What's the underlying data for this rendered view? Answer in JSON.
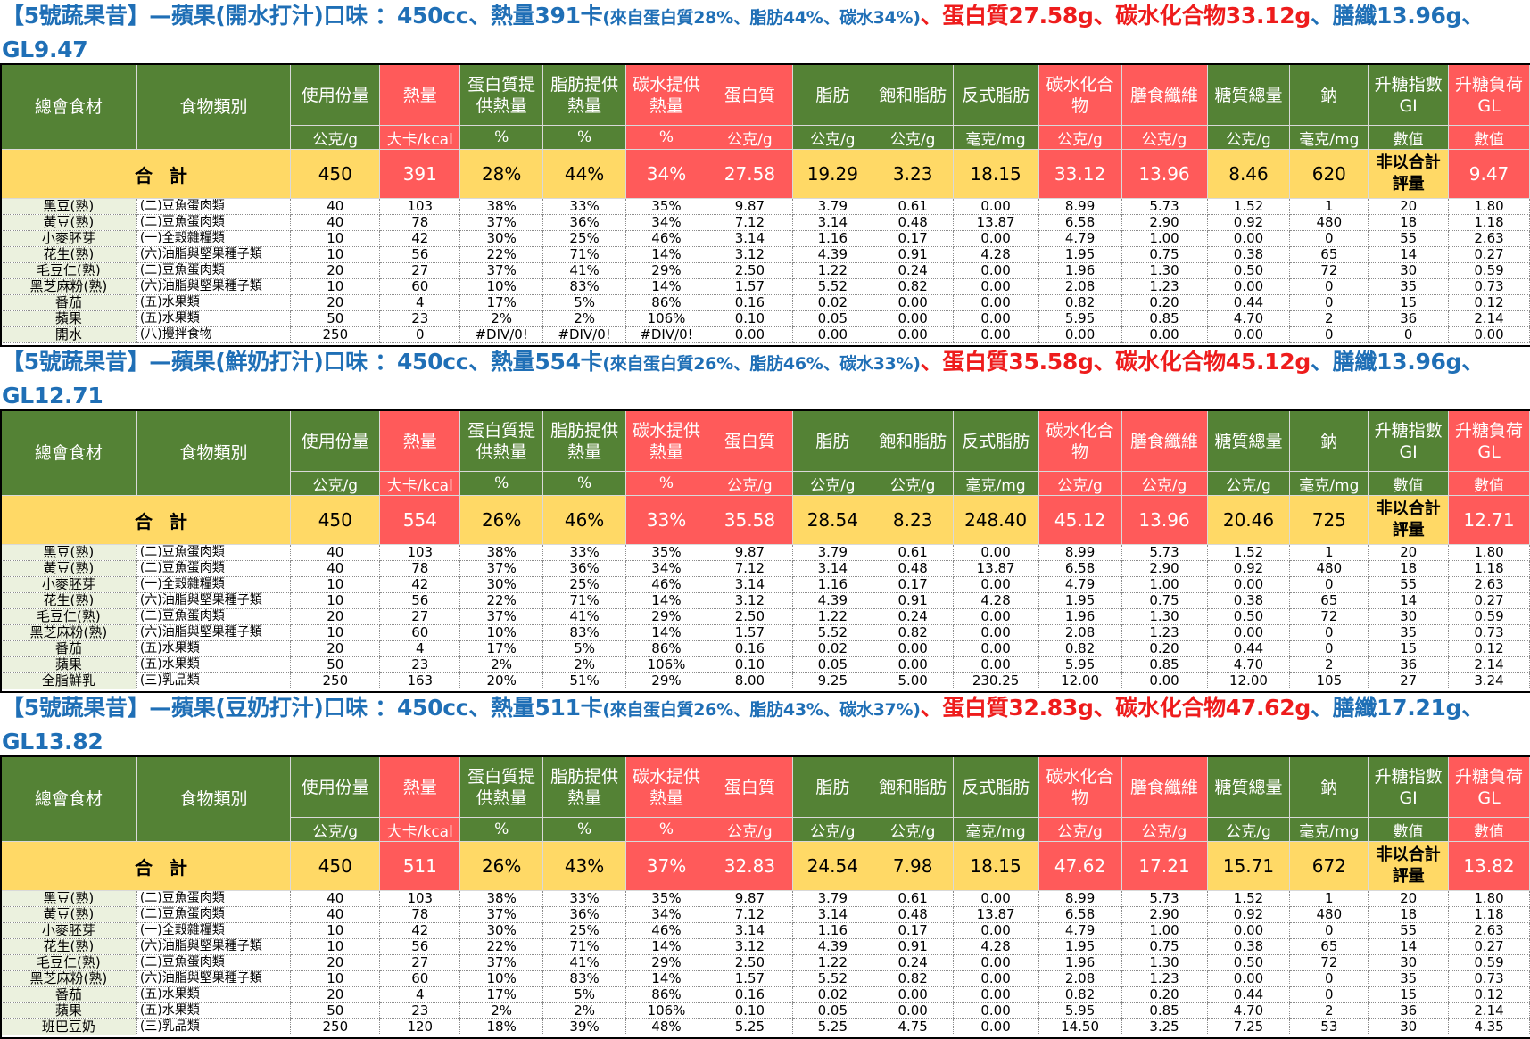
{
  "header_labels": {
    "col_ingredient": "總會食材",
    "col_category": "食物類別",
    "col_portion": "使用份量",
    "col_calories": "熱量",
    "col_protein_pct": "蛋白質提供熱量",
    "col_fat_pct": "脂肪提供熱量",
    "col_carb_pct": "碳水提供熱量",
    "col_protein": "蛋白質",
    "col_fat": "脂肪",
    "col_satfat": "飽和脂肪",
    "col_transfat": "反式脂肪",
    "col_carbs": "碳水化合物",
    "col_fiber": "膳食纖維",
    "col_sugar": "糖質總量",
    "col_sodium": "鈉",
    "col_gi": "升糖指數GI",
    "col_gl": "升糖負荷GL"
  },
  "unit_labels": {
    "portion": "公克/g",
    "calories": "大卡/kcal",
    "protein_pct": "%",
    "fat_pct": "%",
    "carb_pct": "%",
    "protein": "公克/g",
    "fat": "公克/g",
    "satfat": "公克/g",
    "transfat": "毫克/mg",
    "carbs": "公克/g",
    "fiber": "公克/g",
    "sugar": "公克/g",
    "sodium": "毫克/mg",
    "gi": "數值",
    "gl": "數值"
  },
  "colors": {
    "title_blue": "#1f6fb6",
    "title_red": "#ee1c1c",
    "header_green": "#548235",
    "header_red": "#ff5a5a",
    "total_yellow": "#ffd966",
    "name_tint": "#ebf1de"
  },
  "sections": [
    {
      "title": {
        "main": "【5號蔬果昔】—蘋果(開水打汁)口味 ：450cc、熱量391卡",
        "note": "(來自蛋白質28%、脂肪44%、碳水34%)",
        "sep1": "、",
        "protein": "蛋白質27.58g",
        "sep2": "、",
        "carbs": "碳水化合物33.12g",
        "tail": "、膳纖13.96g、GL9.47"
      },
      "total": {
        "label": "合 計",
        "values": [
          "450",
          "391",
          "28%",
          "44%",
          "34%",
          "27.58",
          "19.29",
          "3.23",
          "18.15",
          "33.12",
          "13.96",
          "8.46",
          "620",
          "非以合計評量",
          "9.47"
        ]
      },
      "rows": [
        {
          "name": "黑豆(熟)",
          "category": "(二)豆魚蛋肉類",
          "values": [
            "40",
            "103",
            "38%",
            "33%",
            "35%",
            "9.87",
            "3.79",
            "0.61",
            "0.00",
            "8.99",
            "5.73",
            "1.52",
            "1",
            "20",
            "1.80"
          ]
        },
        {
          "name": "黃豆(熟)",
          "category": "(二)豆魚蛋肉類",
          "values": [
            "40",
            "78",
            "37%",
            "36%",
            "34%",
            "7.12",
            "3.14",
            "0.48",
            "13.87",
            "6.58",
            "2.90",
            "0.92",
            "480",
            "18",
            "1.18"
          ]
        },
        {
          "name": "小麥胚芽",
          "category": "(一)全穀雜糧類",
          "values": [
            "10",
            "42",
            "30%",
            "25%",
            "46%",
            "3.14",
            "1.16",
            "0.17",
            "0.00",
            "4.79",
            "1.00",
            "0.00",
            "0",
            "55",
            "2.63"
          ]
        },
        {
          "name": "花生(熟)",
          "category": "(六)油脂與堅果種子類",
          "values": [
            "10",
            "56",
            "22%",
            "71%",
            "14%",
            "3.12",
            "4.39",
            "0.91",
            "4.28",
            "1.95",
            "0.75",
            "0.38",
            "65",
            "14",
            "0.27"
          ]
        },
        {
          "name": "毛豆仁(熟)",
          "category": "(二)豆魚蛋肉類",
          "values": [
            "20",
            "27",
            "37%",
            "41%",
            "29%",
            "2.50",
            "1.22",
            "0.24",
            "0.00",
            "1.96",
            "1.30",
            "0.50",
            "72",
            "30",
            "0.59"
          ]
        },
        {
          "name": "黑芝麻粉(熟)",
          "category": "(六)油脂與堅果種子類",
          "values": [
            "10",
            "60",
            "10%",
            "83%",
            "14%",
            "1.57",
            "5.52",
            "0.82",
            "0.00",
            "2.08",
            "1.23",
            "0.00",
            "0",
            "35",
            "0.73"
          ]
        },
        {
          "name": "番茄",
          "category": "(五)水果類",
          "values": [
            "20",
            "4",
            "17%",
            "5%",
            "86%",
            "0.16",
            "0.02",
            "0.00",
            "0.00",
            "0.82",
            "0.20",
            "0.44",
            "0",
            "15",
            "0.12"
          ]
        },
        {
          "name": "蘋果",
          "category": "(五)水果類",
          "values": [
            "50",
            "23",
            "2%",
            "2%",
            "106%",
            "0.10",
            "0.05",
            "0.00",
            "0.00",
            "5.95",
            "0.85",
            "4.70",
            "2",
            "36",
            "2.14"
          ]
        },
        {
          "name": "開水",
          "category": "(八)攪拌食物",
          "values": [
            "250",
            "0",
            "#DIV/0!",
            "#DIV/0!",
            "#DIV/0!",
            "0.00",
            "0.00",
            "0.00",
            "0.00",
            "0.00",
            "0.00",
            "0.00",
            "0",
            "0",
            "0.00"
          ]
        }
      ]
    },
    {
      "title": {
        "main": "【5號蔬果昔】—蘋果(鮮奶打汁)口味 ：450cc、熱量554卡",
        "note": "(來自蛋白質26%、脂肪46%、碳水33%)",
        "sep1": "、",
        "protein": "蛋白質35.58g",
        "sep2": "、",
        "carbs": "碳水化合物45.12g",
        "tail": "、膳纖13.96g、GL12.71"
      },
      "total": {
        "label": "合 計",
        "values": [
          "450",
          "554",
          "26%",
          "46%",
          "33%",
          "35.58",
          "28.54",
          "8.23",
          "248.40",
          "45.12",
          "13.96",
          "20.46",
          "725",
          "非以合計評量",
          "12.71"
        ]
      },
      "rows": [
        {
          "name": "黑豆(熟)",
          "category": "(二)豆魚蛋肉類",
          "values": [
            "40",
            "103",
            "38%",
            "33%",
            "35%",
            "9.87",
            "3.79",
            "0.61",
            "0.00",
            "8.99",
            "5.73",
            "1.52",
            "1",
            "20",
            "1.80"
          ]
        },
        {
          "name": "黃豆(熟)",
          "category": "(二)豆魚蛋肉類",
          "values": [
            "40",
            "78",
            "37%",
            "36%",
            "34%",
            "7.12",
            "3.14",
            "0.48",
            "13.87",
            "6.58",
            "2.90",
            "0.92",
            "480",
            "18",
            "1.18"
          ]
        },
        {
          "name": "小麥胚芽",
          "category": "(一)全穀雜糧類",
          "values": [
            "10",
            "42",
            "30%",
            "25%",
            "46%",
            "3.14",
            "1.16",
            "0.17",
            "0.00",
            "4.79",
            "1.00",
            "0.00",
            "0",
            "55",
            "2.63"
          ]
        },
        {
          "name": "花生(熟)",
          "category": "(六)油脂與堅果種子類",
          "values": [
            "10",
            "56",
            "22%",
            "71%",
            "14%",
            "3.12",
            "4.39",
            "0.91",
            "4.28",
            "1.95",
            "0.75",
            "0.38",
            "65",
            "14",
            "0.27"
          ]
        },
        {
          "name": "毛豆仁(熟)",
          "category": "(二)豆魚蛋肉類",
          "values": [
            "20",
            "27",
            "37%",
            "41%",
            "29%",
            "2.50",
            "1.22",
            "0.24",
            "0.00",
            "1.96",
            "1.30",
            "0.50",
            "72",
            "30",
            "0.59"
          ]
        },
        {
          "name": "黑芝麻粉(熟)",
          "category": "(六)油脂與堅果種子類",
          "values": [
            "10",
            "60",
            "10%",
            "83%",
            "14%",
            "1.57",
            "5.52",
            "0.82",
            "0.00",
            "2.08",
            "1.23",
            "0.00",
            "0",
            "35",
            "0.73"
          ]
        },
        {
          "name": "番茄",
          "category": "(五)水果類",
          "values": [
            "20",
            "4",
            "17%",
            "5%",
            "86%",
            "0.16",
            "0.02",
            "0.00",
            "0.00",
            "0.82",
            "0.20",
            "0.44",
            "0",
            "15",
            "0.12"
          ]
        },
        {
          "name": "蘋果",
          "category": "(五)水果類",
          "values": [
            "50",
            "23",
            "2%",
            "2%",
            "106%",
            "0.10",
            "0.05",
            "0.00",
            "0.00",
            "5.95",
            "0.85",
            "4.70",
            "2",
            "36",
            "2.14"
          ]
        },
        {
          "name": "全脂鮮乳",
          "category": "(三)乳品類",
          "values": [
            "250",
            "163",
            "20%",
            "51%",
            "29%",
            "8.00",
            "9.25",
            "5.00",
            "230.25",
            "12.00",
            "0.00",
            "12.00",
            "105",
            "27",
            "3.24"
          ]
        }
      ]
    },
    {
      "title": {
        "main": "【5號蔬果昔】—蘋果(豆奶打汁)口味 ：450cc、熱量511卡",
        "note": "(來自蛋白質26%、脂肪43%、碳水37%)",
        "sep1": "、",
        "protein": "蛋白質32.83g",
        "sep2": "、",
        "carbs": "碳水化合物47.62g",
        "tail": "、膳纖17.21g、GL13.82"
      },
      "total": {
        "label": "合 計",
        "values": [
          "450",
          "511",
          "26%",
          "43%",
          "37%",
          "32.83",
          "24.54",
          "7.98",
          "18.15",
          "47.62",
          "17.21",
          "15.71",
          "672",
          "非以合計評量",
          "13.82"
        ]
      },
      "rows": [
        {
          "name": "黑豆(熟)",
          "category": "(二)豆魚蛋肉類",
          "values": [
            "40",
            "103",
            "38%",
            "33%",
            "35%",
            "9.87",
            "3.79",
            "0.61",
            "0.00",
            "8.99",
            "5.73",
            "1.52",
            "1",
            "20",
            "1.80"
          ]
        },
        {
          "name": "黃豆(熟)",
          "category": "(二)豆魚蛋肉類",
          "values": [
            "40",
            "78",
            "37%",
            "36%",
            "34%",
            "7.12",
            "3.14",
            "0.48",
            "13.87",
            "6.58",
            "2.90",
            "0.92",
            "480",
            "18",
            "1.18"
          ]
        },
        {
          "name": "小麥胚芽",
          "category": "(一)全穀雜糧類",
          "values": [
            "10",
            "42",
            "30%",
            "25%",
            "46%",
            "3.14",
            "1.16",
            "0.17",
            "0.00",
            "4.79",
            "1.00",
            "0.00",
            "0",
            "55",
            "2.63"
          ]
        },
        {
          "name": "花生(熟)",
          "category": "(六)油脂與堅果種子類",
          "values": [
            "10",
            "56",
            "22%",
            "71%",
            "14%",
            "3.12",
            "4.39",
            "0.91",
            "4.28",
            "1.95",
            "0.75",
            "0.38",
            "65",
            "14",
            "0.27"
          ]
        },
        {
          "name": "毛豆仁(熟)",
          "category": "(二)豆魚蛋肉類",
          "values": [
            "20",
            "27",
            "37%",
            "41%",
            "29%",
            "2.50",
            "1.22",
            "0.24",
            "0.00",
            "1.96",
            "1.30",
            "0.50",
            "72",
            "30",
            "0.59"
          ]
        },
        {
          "name": "黑芝麻粉(熟)",
          "category": "(六)油脂與堅果種子類",
          "values": [
            "10",
            "60",
            "10%",
            "83%",
            "14%",
            "1.57",
            "5.52",
            "0.82",
            "0.00",
            "2.08",
            "1.23",
            "0.00",
            "0",
            "35",
            "0.73"
          ]
        },
        {
          "name": "番茄",
          "category": "(五)水果類",
          "values": [
            "20",
            "4",
            "17%",
            "5%",
            "86%",
            "0.16",
            "0.02",
            "0.00",
            "0.00",
            "0.82",
            "0.20",
            "0.44",
            "0",
            "15",
            "0.12"
          ]
        },
        {
          "name": "蘋果",
          "category": "(五)水果類",
          "values": [
            "50",
            "23",
            "2%",
            "2%",
            "106%",
            "0.10",
            "0.05",
            "0.00",
            "0.00",
            "5.95",
            "0.85",
            "4.70",
            "2",
            "36",
            "2.14"
          ]
        },
        {
          "name": "班巴豆奶",
          "category": "(三)乳品類",
          "values": [
            "250",
            "120",
            "18%",
            "39%",
            "48%",
            "5.25",
            "5.25",
            "4.75",
            "0.00",
            "14.50",
            "3.25",
            "7.25",
            "53",
            "30",
            "4.35"
          ]
        }
      ]
    }
  ]
}
